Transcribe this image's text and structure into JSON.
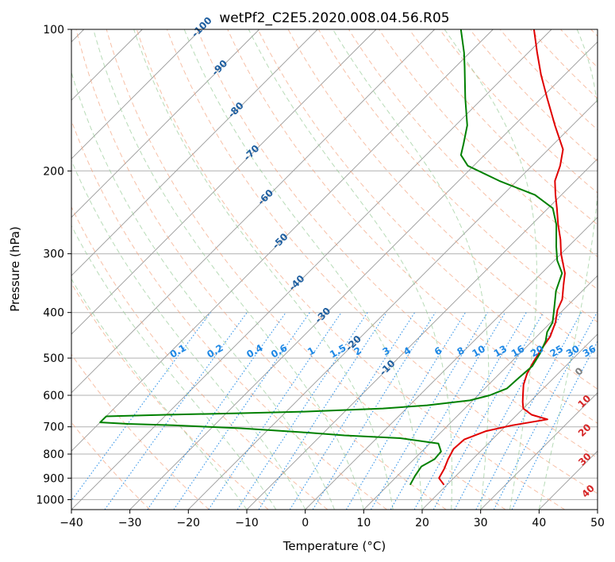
{
  "chart_data": {
    "type": "line",
    "title": "wetPf2_C2E5.2020.008.04.56.R05",
    "xlabel": "Temperature (°C)",
    "ylabel": "Pressure (hPa)",
    "xlim": [
      -40,
      50
    ],
    "ylim": [
      1050,
      100
    ],
    "y_scale": "log",
    "skew": "skew-T log-p",
    "grid": true,
    "x_ticks": [
      -40,
      -30,
      -20,
      -10,
      0,
      10,
      20,
      30,
      40,
      50
    ],
    "y_ticks": [
      100,
      200,
      300,
      400,
      500,
      600,
      700,
      800,
      900,
      1000
    ],
    "colors": {
      "temperature": "#e00000",
      "dewpoint": "#008000",
      "isotherm": "#999999",
      "dry_adiabat": "#f4a582",
      "moist_adiabat": "#99cc99",
      "mixing_ratio": "#1e88e5",
      "isotherm_label": "#1f5fa0",
      "dry_adiabat_label": "#d62728",
      "zero_label": "#808080"
    },
    "series": [
      {
        "kind": "temperature",
        "pressure": [
          930,
          900,
          860,
          820,
          780,
          745,
          715,
          695,
          675,
          660,
          640,
          620,
          600,
          570,
          540,
          510,
          480,
          450,
          420,
          395,
          375,
          350,
          330,
          300,
          280,
          260,
          240,
          225,
          210,
          195,
          180,
          160,
          140,
          125,
          112,
          100
        ],
        "values": [
          19.5,
          17.5,
          16.8,
          15.8,
          15.0,
          15.2,
          17.5,
          21.0,
          26.0,
          22.5,
          20.0,
          18.8,
          17.7,
          16.0,
          14.7,
          13.8,
          13.0,
          12.3,
          10.8,
          9.0,
          8.0,
          5.8,
          4.0,
          0.0,
          -2.5,
          -5.5,
          -8.5,
          -11.0,
          -13.5,
          -15.2,
          -17.5,
          -23.0,
          -29.0,
          -34.0,
          -38.5,
          -43.0
        ]
      },
      {
        "kind": "dewpoint",
        "pressure": [
          930,
          890,
          850,
          820,
          790,
          760,
          740,
          730,
          720,
          705,
          695,
          690,
          685,
          680,
          675,
          665,
          660,
          655,
          650,
          640,
          630,
          615,
          600,
          580,
          550,
          520,
          490,
          460,
          440,
          420,
          400,
          380,
          360,
          330,
          310,
          290,
          260,
          240,
          225,
          210,
          195,
          185,
          175,
          160,
          140,
          120,
          112,
          100
        ],
        "values": [
          13.7,
          13.0,
          12.5,
          13.5,
          13.3,
          11.5,
          4.0,
          -6.0,
          -13.0,
          -25.0,
          -37.0,
          -45.0,
          -50.0,
          -50.0,
          -50.0,
          -50.0,
          -40.0,
          -28.0,
          -17.0,
          -4.0,
          3.0,
          9.5,
          12.0,
          13.8,
          14.0,
          14.3,
          13.5,
          12.3,
          11.0,
          10.3,
          8.8,
          7.2,
          5.5,
          3.5,
          0.5,
          -2.0,
          -5.8,
          -9.2,
          -14.5,
          -23.0,
          -31.0,
          -34.0,
          -35.5,
          -38.0,
          -43.0,
          -48.5,
          -51.0,
          -55.5
        ]
      }
    ],
    "isotherm_labels": [
      "-100",
      "-90",
      "-80",
      "-70",
      "-60",
      "-50",
      "-40",
      "-30",
      "-20",
      "-10"
    ],
    "mixing_ratio_labels": [
      "0.1",
      "0.2",
      "0.4",
      "0.6",
      "1",
      "1.5",
      "2",
      "3",
      "4",
      "6",
      "8",
      "10",
      "13",
      "16",
      "20",
      "25",
      "30",
      "36"
    ],
    "dry_adiabat_labels": [
      "0",
      "10",
      "20",
      "30",
      "40"
    ]
  }
}
